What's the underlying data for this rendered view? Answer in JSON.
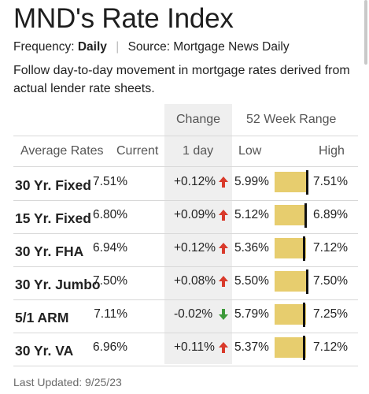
{
  "title": "MND's Rate Index",
  "meta": {
    "frequency_label": "Frequency:",
    "frequency_value": "Daily",
    "separator": "|",
    "source": "Source: Mortgage News Daily"
  },
  "description": "Follow day-to-day movement in mortgage rates derived from actual lender rate sheets.",
  "headers": {
    "change": "Change",
    "range": "52 Week Range",
    "average_rates": "Average Rates",
    "current": "Current",
    "one_day": "1 day",
    "low": "Low",
    "high": "High"
  },
  "colors": {
    "up_arrow": "#d93a2b",
    "down_arrow": "#3d9a3a",
    "range_bar": "#e7cd6e",
    "change_column_bg": "#efefef"
  },
  "rows": [
    {
      "name": "30 Yr. Fixed",
      "current": "7.51%",
      "change": "+0.12%",
      "direction": "up",
      "direction_icon": "up-arrow-icon",
      "low": "5.99%",
      "high": "7.51%",
      "range_position": 1.0
    },
    {
      "name": "15 Yr. Fixed",
      "current": "6.80%",
      "change": "+0.09%",
      "direction": "up",
      "direction_icon": "up-arrow-icon",
      "low": "5.12%",
      "high": "6.89%",
      "range_position": 0.95
    },
    {
      "name": "30 Yr. FHA",
      "current": "6.94%",
      "change": "+0.12%",
      "direction": "up",
      "direction_icon": "up-arrow-icon",
      "low": "5.36%",
      "high": "7.12%",
      "range_position": 0.9
    },
    {
      "name": "30 Yr. Jumbo",
      "current": "7.50%",
      "change": "+0.08%",
      "direction": "up",
      "direction_icon": "up-arrow-icon",
      "low": "5.50%",
      "high": "7.50%",
      "range_position": 1.0
    },
    {
      "name": "5/1 ARM",
      "current": "7.11%",
      "change": "-0.02%",
      "direction": "down",
      "direction_icon": "down-arrow-icon",
      "low": "5.79%",
      "high": "7.25%",
      "range_position": 0.9
    },
    {
      "name": "30 Yr. VA",
      "current": "6.96%",
      "change": "+0.11%",
      "direction": "up",
      "direction_icon": "up-arrow-icon",
      "low": "5.37%",
      "high": "7.12%",
      "range_position": 0.91
    }
  ],
  "last_updated": "Last Updated: 9/25/23"
}
